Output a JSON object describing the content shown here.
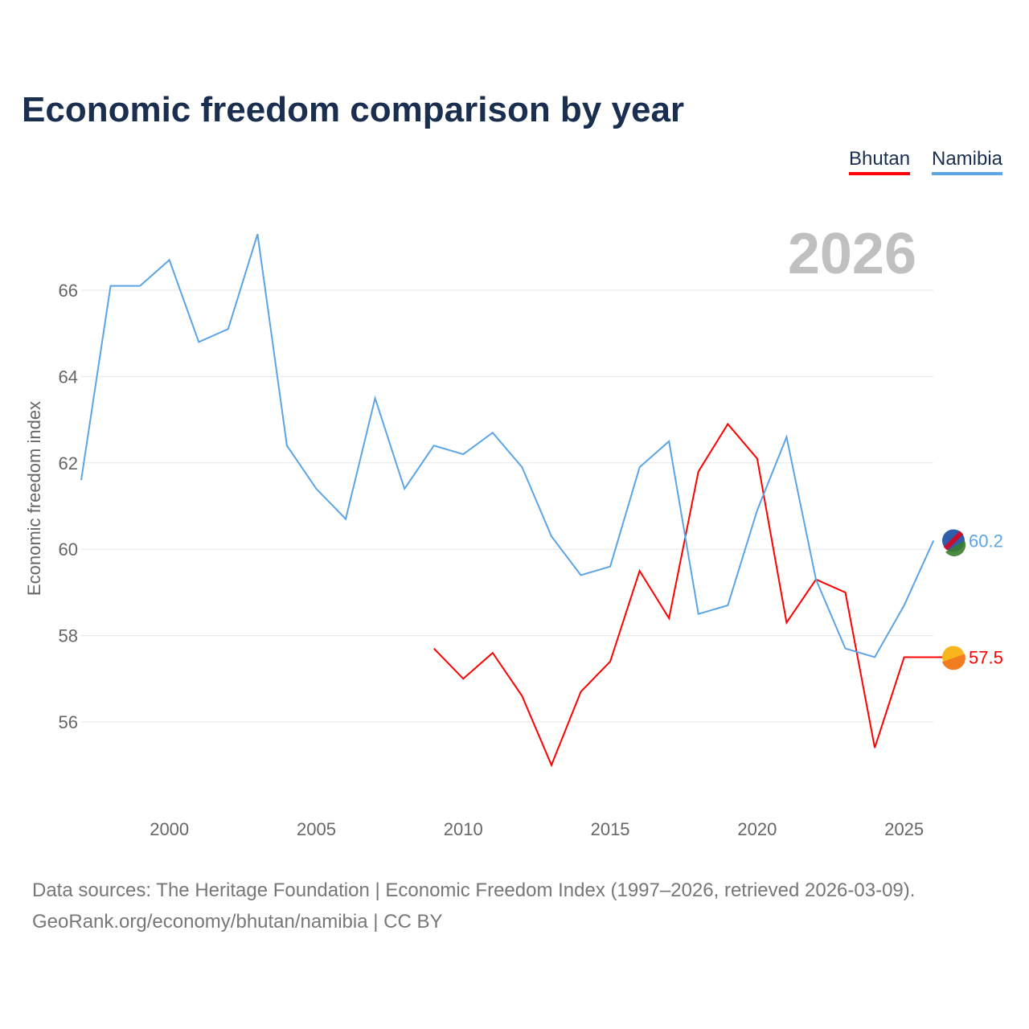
{
  "title": "Economic freedom comparison by year",
  "year_label": "2026",
  "source_line1": "Data sources: The Heritage Foundation | Economic Freedom Index (1997–2026, retrieved 2026-03-09).",
  "source_line2": "GeoRank.org/economy/bhutan/namibia | CC BY",
  "chart_data": {
    "type": "line",
    "title": "Economic freedom comparison by year",
    "xlabel": "",
    "ylabel": "Economic freedom index",
    "xlim": [
      1997,
      2026
    ],
    "ylim": [
      54,
      68
    ],
    "xticks": [
      2000,
      2005,
      2010,
      2015,
      2020,
      2025
    ],
    "yticks": [
      56,
      58,
      60,
      62,
      64,
      66
    ],
    "grid": true,
    "legend": "top-right",
    "series": [
      {
        "name": "Bhutan",
        "color": "#ff0000",
        "end_label": "57.5",
        "x": [
          2009,
          2010,
          2011,
          2012,
          2013,
          2014,
          2015,
          2016,
          2017,
          2018,
          2019,
          2020,
          2021,
          2022,
          2023,
          2024,
          2025,
          2026
        ],
        "values": [
          57.7,
          57.0,
          57.6,
          56.6,
          55.0,
          56.7,
          57.4,
          59.5,
          58.4,
          61.8,
          62.9,
          62.1,
          58.3,
          59.3,
          59.0,
          55.4,
          57.5,
          57.5
        ]
      },
      {
        "name": "Namibia",
        "color": "#5ba4e6",
        "end_label": "60.2",
        "x": [
          1997,
          1998,
          1999,
          2000,
          2001,
          2002,
          2003,
          2004,
          2005,
          2006,
          2007,
          2008,
          2009,
          2010,
          2011,
          2012,
          2013,
          2014,
          2015,
          2016,
          2017,
          2018,
          2019,
          2020,
          2021,
          2022,
          2023,
          2024,
          2025,
          2026
        ],
        "values": [
          61.6,
          66.1,
          66.1,
          66.7,
          64.8,
          65.1,
          67.3,
          62.4,
          61.4,
          60.7,
          63.5,
          61.4,
          62.4,
          62.2,
          62.7,
          61.9,
          60.3,
          59.4,
          59.6,
          61.9,
          62.5,
          58.5,
          58.7,
          60.9,
          62.6,
          59.3,
          57.7,
          57.5,
          58.7,
          60.2
        ]
      }
    ]
  }
}
